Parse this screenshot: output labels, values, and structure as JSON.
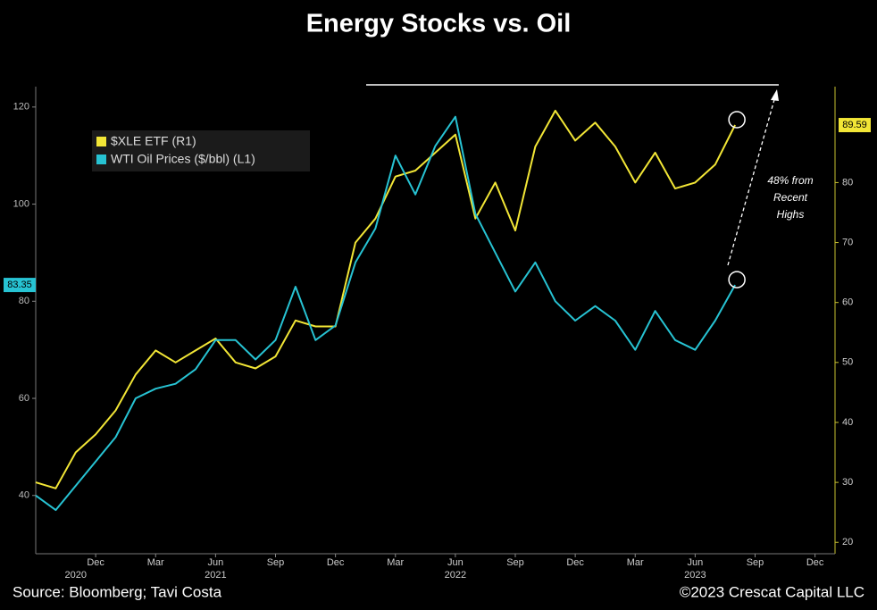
{
  "chart_data": {
    "type": "line",
    "title": "Energy Stocks vs. Oil",
    "x": [
      "2020-09",
      "2020-10",
      "2020-11",
      "2020-12",
      "2021-01",
      "2021-02",
      "2021-03",
      "2021-04",
      "2021-05",
      "2021-06",
      "2021-07",
      "2021-08",
      "2021-09",
      "2021-10",
      "2021-11",
      "2021-12",
      "2022-01",
      "2022-02",
      "2022-03",
      "2022-04",
      "2022-05",
      "2022-06",
      "2022-07",
      "2022-08",
      "2022-09",
      "2022-10",
      "2022-11",
      "2022-12",
      "2023-01",
      "2023-02",
      "2023-03",
      "2023-04",
      "2023-05",
      "2023-06",
      "2023-07",
      "2023-08"
    ],
    "series": [
      {
        "name": "$XLE ETF (R1)",
        "color": "#f2e636",
        "axis": "y2",
        "values": [
          30,
          29,
          35,
          38,
          42,
          48,
          52,
          50,
          52,
          54,
          50,
          49,
          51,
          57,
          56,
          56,
          70,
          74,
          81,
          82,
          85,
          88,
          74,
          80,
          72,
          86,
          92,
          87,
          90,
          86,
          80,
          85,
          79,
          80,
          83,
          89.59
        ]
      },
      {
        "name": "WTI Oil Prices ($/bbl) (L1)",
        "color": "#27c3d3",
        "axis": "y",
        "values": [
          40,
          37,
          42,
          47,
          52,
          60,
          62,
          63,
          66,
          72,
          72,
          68,
          72,
          83,
          72,
          75,
          88,
          95,
          110,
          102,
          112,
          118,
          98,
          90,
          82,
          88,
          80,
          76,
          79,
          76,
          70,
          78,
          72,
          70,
          76,
          83.35
        ]
      }
    ],
    "xlim": [
      "2020-09",
      "2024-01"
    ],
    "xticks": [
      {
        "value": "2020-12",
        "label": "Dec"
      },
      {
        "value": "2021-03",
        "label": "Mar"
      },
      {
        "value": "2021-06",
        "label": "Jun"
      },
      {
        "value": "2021-09",
        "label": "Sep"
      },
      {
        "value": "2021-12",
        "label": "Dec"
      },
      {
        "value": "2022-03",
        "label": "Mar"
      },
      {
        "value": "2022-06",
        "label": "Jun"
      },
      {
        "value": "2022-09",
        "label": "Sep"
      },
      {
        "value": "2022-12",
        "label": "Dec"
      },
      {
        "value": "2023-03",
        "label": "Mar"
      },
      {
        "value": "2023-06",
        "label": "Jun"
      },
      {
        "value": "2023-09",
        "label": "Sep"
      },
      {
        "value": "2023-12",
        "label": "Dec"
      }
    ],
    "x_year_labels": [
      {
        "value": "2020-11",
        "label": "2020"
      },
      {
        "value": "2021-06",
        "label": "2021"
      },
      {
        "value": "2022-06",
        "label": "2022"
      },
      {
        "value": "2023-06",
        "label": "2023"
      }
    ],
    "ylim": [
      28,
      124.2
    ],
    "yticks": [
      40,
      60,
      80,
      100,
      120
    ],
    "y2lim": [
      18.1,
      96
    ],
    "y2ticks": [
      20,
      30,
      40,
      50,
      60,
      70,
      80
    ],
    "annotation": [
      "48% from",
      "Recent",
      "Highs"
    ],
    "source": "Source: Bloomberg; Tavi Costa",
    "copyright": "©2023 Crescat Capital LLC"
  }
}
